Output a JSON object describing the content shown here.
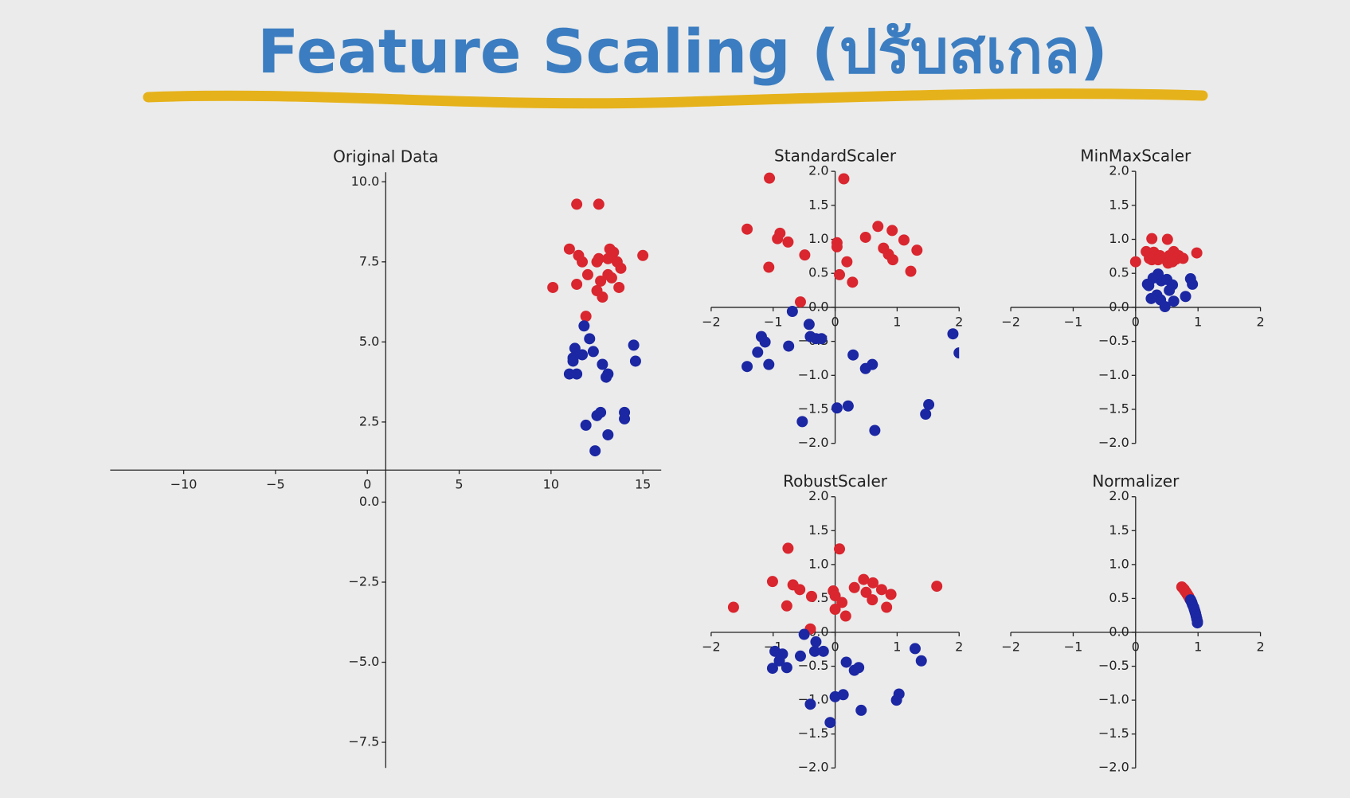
{
  "header": {
    "title": "Feature Scaling (ปรับสเกล)"
  },
  "chart_data": [
    {
      "type": "scatter",
      "title": "Original Data",
      "spines": "center",
      "xlim": [
        -14,
        16
      ],
      "ylim": [
        -8.3,
        10.3
      ],
      "xticks": [
        {
          "value": -10,
          "label": "−10"
        },
        {
          "value": -5,
          "label": "−5"
        },
        0,
        5,
        10,
        15
      ],
      "yticks": [
        {
          "value": -7.5,
          "label": "−7.5"
        },
        {
          "value": -5,
          "label": "−5.0"
        },
        {
          "value": -2.5,
          "label": "−2.5"
        },
        {
          "value": 0,
          "label": "0.0"
        },
        2.5,
        {
          "value": 5,
          "label": "5.0"
        },
        7.5,
        {
          "value": 10,
          "label": "10.0"
        }
      ],
      "series": [
        {
          "color": "#d9262f",
          "x": [
            11.4,
            12.6,
            11.0,
            11.5,
            11.7,
            12.5,
            12.6,
            13.2,
            13.4,
            13.1,
            13.6,
            15.0,
            12.0,
            13.1,
            13.8,
            13.3,
            10.1,
            11.4,
            12.7,
            12.5,
            12.8,
            13.7,
            11.9
          ],
          "values": [
            9.3,
            9.3,
            7.9,
            7.7,
            7.5,
            7.5,
            7.6,
            7.9,
            7.8,
            7.6,
            7.5,
            7.7,
            7.1,
            7.1,
            7.3,
            7.0,
            6.7,
            6.8,
            6.9,
            6.6,
            6.4,
            6.7,
            5.8
          ]
        },
        {
          "color": "#1b27a3",
          "x": [
            11.8,
            12.1,
            11.3,
            11.2,
            11.7,
            12.3,
            12.8,
            13.1,
            13.0,
            11.0,
            11.4,
            14.5,
            14.6,
            11.9,
            12.5,
            12.7,
            13.1,
            14.0,
            14.0,
            12.4,
            11.2
          ],
          "values": [
            5.5,
            5.1,
            4.8,
            4.5,
            4.6,
            4.7,
            4.3,
            4.0,
            3.9,
            4.0,
            4.0,
            4.9,
            4.4,
            2.4,
            2.7,
            2.8,
            2.1,
            2.8,
            2.6,
            1.6,
            4.4
          ]
        }
      ]
    },
    {
      "type": "scatter",
      "title": "StandardScaler",
      "spines": "center",
      "xlim": [
        -2,
        2
      ],
      "ylim": [
        -2,
        2
      ],
      "xticks": [
        {
          "value": -2,
          "label": "−2"
        },
        {
          "value": -1,
          "label": "−1"
        },
        0,
        1,
        2
      ],
      "yticks": [
        {
          "value": -2,
          "label": "−2.0"
        },
        {
          "value": -1.5,
          "label": "−1.5"
        },
        {
          "value": -1,
          "label": "−1.0"
        },
        {
          "value": -0.5,
          "label": "−0.5"
        },
        {
          "value": 0,
          "label": "0.0"
        },
        0.5,
        {
          "value": 1,
          "label": "1.0"
        },
        1.5,
        {
          "value": 2,
          "label": "2.0"
        }
      ],
      "series": [
        {
          "color": "#d9262f",
          "x": [
            -1.06,
            0.14,
            -1.42,
            -0.89,
            -0.93,
            -0.76,
            -0.49,
            -1.07,
            0.03,
            0.03,
            0.49,
            0.69,
            0.92,
            1.11,
            0.78,
            0.86,
            0.93,
            1.32,
            1.22,
            0.19,
            0.07,
            0.28,
            -0.56
          ],
          "values": [
            1.9,
            1.89,
            1.15,
            1.09,
            1.01,
            0.96,
            0.77,
            0.59,
            0.95,
            0.89,
            1.03,
            1.19,
            1.13,
            0.99,
            0.87,
            0.78,
            0.7,
            0.84,
            0.53,
            0.67,
            0.48,
            0.37,
            0.08
          ]
        },
        {
          "color": "#1b27a3",
          "x": [
            -0.69,
            -0.42,
            -1.19,
            -1.13,
            -1.25,
            -1.07,
            -1.42,
            -0.75,
            -0.4,
            -0.31,
            -0.22,
            1.9,
            2.0,
            0.29,
            0.49,
            0.6,
            0.03,
            0.21,
            0.64,
            1.51,
            1.46,
            -0.53
          ],
          "values": [
            -0.06,
            -0.25,
            -0.43,
            -0.51,
            -0.66,
            -0.84,
            -0.87,
            -0.57,
            -0.43,
            -0.46,
            -0.46,
            -0.39,
            -0.67,
            -0.7,
            -0.9,
            -0.84,
            -1.48,
            -1.45,
            -1.81,
            -1.43,
            -1.57,
            -1.68
          ]
        }
      ]
    },
    {
      "type": "scatter",
      "title": "MinMaxScaler",
      "spines": "center",
      "xlim": [
        -2,
        2
      ],
      "ylim": [
        -2,
        2
      ],
      "xticks": [
        {
          "value": -2,
          "label": "−2"
        },
        {
          "value": -1,
          "label": "−1"
        },
        0,
        1,
        2
      ],
      "yticks": [
        {
          "value": -2,
          "label": "−2.0"
        },
        {
          "value": -1.5,
          "label": "−1.5"
        },
        {
          "value": -1,
          "label": "−1.0"
        },
        {
          "value": -0.5,
          "label": "−0.5"
        },
        {
          "value": 0,
          "label": "0.0"
        },
        0.5,
        {
          "value": 1,
          "label": "1.0"
        },
        1.5,
        {
          "value": 2,
          "label": "2.0"
        }
      ],
      "series": [
        {
          "color": "#d9262f",
          "x": [
            0,
            0.26,
            0.51,
            0.17,
            0.29,
            0.39,
            0.44,
            0.54,
            0.61,
            0.69,
            0.65,
            0.76,
            0.98,
            0.26,
            0.52,
            0.36,
            0.22,
            0.59
          ],
          "values": [
            0.67,
            1.01,
            1.0,
            0.82,
            0.81,
            0.76,
            0.72,
            0.76,
            0.82,
            0.76,
            0.71,
            0.72,
            0.8,
            0.7,
            0.65,
            0.7,
            0.72,
            0.67
          ]
        },
        {
          "color": "#1b27a3",
          "x": [
            0.36,
            0.41,
            0.19,
            0.28,
            0.5,
            0.59,
            0.54,
            0.88,
            0.91,
            0.34,
            0.4,
            0.47,
            0.61,
            0.8,
            0.25,
            0.21
          ],
          "values": [
            0.49,
            0.39,
            0.34,
            0.43,
            0.41,
            0.33,
            0.25,
            0.42,
            0.34,
            0.18,
            0.11,
            0.01,
            0.09,
            0.16,
            0.13,
            0.32
          ]
        }
      ]
    },
    {
      "type": "scatter",
      "title": "RobustScaler",
      "spines": "center",
      "xlim": [
        -2,
        2
      ],
      "ylim": [
        -2,
        2
      ],
      "xticks": [
        {
          "value": -2,
          "label": "−2"
        },
        {
          "value": -1,
          "label": "−1"
        },
        0,
        1,
        2
      ],
      "yticks": [
        {
          "value": -2,
          "label": "−2.0"
        },
        {
          "value": -1.5,
          "label": "−1.5"
        },
        {
          "value": -1,
          "label": "−1.0"
        },
        {
          "value": -0.5,
          "label": "−0.5"
        },
        {
          "value": 0,
          "label": "0.0"
        },
        0.5,
        {
          "value": 1,
          "label": "1.0"
        },
        1.5,
        {
          "value": 2,
          "label": "2.0"
        }
      ],
      "series": [
        {
          "color": "#d9262f",
          "x": [
            -1.64,
            -0.76,
            0.07,
            -1.01,
            -0.68,
            -0.57,
            -0.38,
            -0.78,
            -0.03,
            0,
            0.31,
            0.46,
            0.61,
            0.75,
            0.9,
            0.5,
            0.6,
            0.83,
            1.64,
            0.11,
            0,
            0.17,
            -0.4
          ],
          "values": [
            0.37,
            1.24,
            1.23,
            0.75,
            0.7,
            0.63,
            0.53,
            0.39,
            0.61,
            0.54,
            0.66,
            0.78,
            0.73,
            0.63,
            0.56,
            0.59,
            0.48,
            0.37,
            0.68,
            0.44,
            0.34,
            0.24,
            0.05
          ]
        },
        {
          "color": "#1b27a3",
          "x": [
            -0.5,
            -0.31,
            -0.97,
            -0.85,
            -0.9,
            -1.01,
            -0.78,
            -0.56,
            -0.33,
            -0.19,
            1.29,
            1.39,
            0.18,
            0.31,
            0.38,
            0,
            0.13,
            0.42,
            1.03,
            0.99,
            -0.4,
            -0.08
          ],
          "values": [
            -0.03,
            -0.14,
            -0.28,
            -0.32,
            -0.42,
            -0.53,
            -0.52,
            -0.35,
            -0.28,
            -0.28,
            -0.24,
            -0.42,
            -0.44,
            -0.56,
            -0.52,
            -0.95,
            -0.92,
            -1.15,
            -0.91,
            -1.0,
            -1.06,
            -1.33
          ]
        }
      ]
    },
    {
      "type": "scatter",
      "title": "Normalizer",
      "spines": "center",
      "xlim": [
        -2,
        2
      ],
      "ylim": [
        -2,
        2
      ],
      "xticks": [
        {
          "value": -2,
          "label": "−2"
        },
        {
          "value": -1,
          "label": "−1"
        },
        0,
        1,
        2
      ],
      "yticks": [
        {
          "value": -2,
          "label": "−2.0"
        },
        {
          "value": -1.5,
          "label": "−1.5"
        },
        {
          "value": -1,
          "label": "−1.0"
        },
        {
          "value": -0.5,
          "label": "−0.5"
        },
        {
          "value": 0,
          "label": "0.0"
        },
        0.5,
        {
          "value": 1,
          "label": "1.0"
        },
        1.5,
        {
          "value": 2,
          "label": "2.0"
        }
      ],
      "series": [
        {
          "color": "#d9262f",
          "x": [
            0.74,
            0.76,
            0.77,
            0.78,
            0.79,
            0.8,
            0.81,
            0.82,
            0.83,
            0.84,
            0.85,
            0.86,
            0.87
          ],
          "values": [
            0.67,
            0.65,
            0.64,
            0.63,
            0.61,
            0.6,
            0.59,
            0.57,
            0.56,
            0.54,
            0.53,
            0.51,
            0.49
          ]
        },
        {
          "color": "#1b27a3",
          "x": [
            0.88,
            0.89,
            0.9,
            0.91,
            0.93,
            0.94,
            0.95,
            0.96,
            0.97,
            0.98,
            0.99,
            0.99
          ],
          "values": [
            0.48,
            0.46,
            0.44,
            0.41,
            0.37,
            0.34,
            0.31,
            0.28,
            0.24,
            0.2,
            0.16,
            0.14
          ]
        }
      ]
    }
  ]
}
